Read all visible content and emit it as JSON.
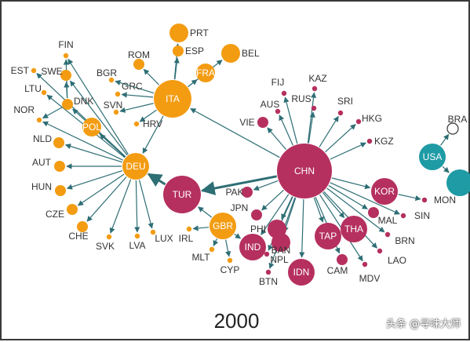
{
  "year": "2000",
  "watermark": "头条 @寻味大师",
  "colors": {
    "orange": "#F39C12",
    "crimson": "#B5305F",
    "teal": "#1E9BA5",
    "edge": "#2E6E75"
  },
  "nodes": [
    {
      "id": "CHN",
      "text": "CHN",
      "group": "crimson",
      "size": "xl",
      "inside": true
    },
    {
      "id": "ITA",
      "text": "ITA",
      "group": "orange",
      "size": "l",
      "inside": true
    },
    {
      "id": "DEU",
      "text": "DEU",
      "group": "orange",
      "size": "m",
      "inside": true
    },
    {
      "id": "TUR",
      "text": "TUR",
      "group": "crimson",
      "size": "l",
      "inside": true
    },
    {
      "id": "GBR",
      "text": "GBR",
      "group": "orange",
      "size": "m",
      "inside": true
    },
    {
      "id": "FRA",
      "text": "FRA",
      "group": "orange",
      "size": "s",
      "inside": true
    },
    {
      "id": "POL",
      "text": "POL",
      "group": "orange",
      "size": "s",
      "inside": true
    },
    {
      "id": "KOR",
      "text": "KOR",
      "group": "crimson",
      "size": "m",
      "inside": true
    },
    {
      "id": "IND",
      "text": "IND",
      "group": "crimson",
      "size": "m",
      "inside": true
    },
    {
      "id": "IDN",
      "text": "IDN",
      "group": "crimson",
      "size": "m",
      "inside": true
    },
    {
      "id": "TAP",
      "text": "TAP",
      "group": "crimson",
      "size": "m",
      "inside": true
    },
    {
      "id": "THA",
      "text": "THA",
      "group": "crimson",
      "size": "m",
      "inside": true
    },
    {
      "id": "USA",
      "text": "USA",
      "group": "teal",
      "size": "m",
      "inside": true
    },
    {
      "id": "TEAL2",
      "text": "",
      "group": "teal",
      "size": "m",
      "inside": true
    },
    {
      "id": "PRT",
      "text": "PRT",
      "group": "orange",
      "size": "s"
    },
    {
      "id": "ESP",
      "text": "ESP",
      "group": "orange",
      "size": "xs"
    },
    {
      "id": "BEL",
      "text": "BEL",
      "group": "orange",
      "size": "s"
    },
    {
      "id": "ROM",
      "text": "ROM",
      "group": "orange",
      "size": "xs"
    },
    {
      "id": "BGR",
      "text": "BGR",
      "group": "orange",
      "size": "xxs"
    },
    {
      "id": "GRC",
      "text": "GRC",
      "group": "orange",
      "size": "xxs"
    },
    {
      "id": "SVN",
      "text": "SVN",
      "group": "orange",
      "size": "xxs"
    },
    {
      "id": "HRV",
      "text": "HRV",
      "group": "orange",
      "size": "xxs"
    },
    {
      "id": "FIN",
      "text": "FIN",
      "group": "orange",
      "size": "xxs"
    },
    {
      "id": "EST",
      "text": "EST",
      "group": "orange",
      "size": "xxs"
    },
    {
      "id": "SWE",
      "text": "SWE",
      "group": "orange",
      "size": "xs"
    },
    {
      "id": "LTU",
      "text": "LTU",
      "group": "orange",
      "size": "xxs"
    },
    {
      "id": "DNK",
      "text": "DNK",
      "group": "orange",
      "size": "xs"
    },
    {
      "id": "NOR",
      "text": "NOR",
      "group": "orange",
      "size": "xxs"
    },
    {
      "id": "NLD",
      "text": "NLD",
      "group": "orange",
      "size": "xs"
    },
    {
      "id": "AUT",
      "text": "AUT",
      "group": "orange",
      "size": "xs"
    },
    {
      "id": "HUN",
      "text": "HUN",
      "group": "orange",
      "size": "xs"
    },
    {
      "id": "CZE",
      "text": "CZE",
      "group": "orange",
      "size": "xs"
    },
    {
      "id": "CHE",
      "text": "CHE",
      "group": "orange",
      "size": "xs"
    },
    {
      "id": "SVK",
      "text": "SVK",
      "group": "orange",
      "size": "xxs"
    },
    {
      "id": "LVA",
      "text": "LVA",
      "group": "orange",
      "size": "xxs"
    },
    {
      "id": "LUX",
      "text": "LUX",
      "group": "orange",
      "size": "xxs"
    },
    {
      "id": "IRL",
      "text": "IRL",
      "group": "orange",
      "size": "xxs"
    },
    {
      "id": "MLT",
      "text": "MLT",
      "group": "orange",
      "size": "xxs"
    },
    {
      "id": "CYP",
      "text": "CYP",
      "group": "orange",
      "size": "xxs"
    },
    {
      "id": "PAK",
      "text": "PAK",
      "group": "crimson",
      "size": "xs"
    },
    {
      "id": "JPN",
      "text": "JPN",
      "group": "crimson",
      "size": "xs"
    },
    {
      "id": "PHI",
      "text": "PHI",
      "group": "crimson",
      "size": "s"
    },
    {
      "id": "BAN",
      "text": "BAN",
      "group": "crimson",
      "size": "s"
    },
    {
      "id": "NPL",
      "text": "NPL",
      "group": "crimson",
      "size": "xxs"
    },
    {
      "id": "BTN",
      "text": "BTN",
      "group": "crimson",
      "size": "xxs"
    },
    {
      "id": "CAM",
      "text": "CAM",
      "group": "crimson",
      "size": "xs"
    },
    {
      "id": "MDV",
      "text": "MDV",
      "group": "crimson",
      "size": "xxs"
    },
    {
      "id": "LAO",
      "text": "LAO",
      "group": "crimson",
      "size": "xxs"
    },
    {
      "id": "BRN",
      "text": "BRN",
      "group": "crimson",
      "size": "xxs"
    },
    {
      "id": "MAL",
      "text": "MAL",
      "group": "crimson",
      "size": "xs"
    },
    {
      "id": "SIN",
      "text": "SIN",
      "group": "crimson",
      "size": "xxs"
    },
    {
      "id": "MON",
      "text": "MON",
      "group": "crimson",
      "size": "xxs"
    },
    {
      "id": "KGZ",
      "text": "KGZ",
      "group": "crimson",
      "size": "xxs"
    },
    {
      "id": "HKG",
      "text": "HKG",
      "group": "crimson",
      "size": "xxs"
    },
    {
      "id": "SRI",
      "text": "SRI",
      "group": "crimson",
      "size": "xxs"
    },
    {
      "id": "KAZ",
      "text": "KAZ",
      "group": "crimson",
      "size": "xxs"
    },
    {
      "id": "RUS",
      "text": "RUS",
      "group": "crimson",
      "size": "xxs"
    },
    {
      "id": "FIJ",
      "text": "FIJ",
      "group": "crimson",
      "size": "xxs"
    },
    {
      "id": "AUS",
      "text": "AUS",
      "group": "crimson",
      "size": "xxs"
    },
    {
      "id": "VIE",
      "text": "VIE",
      "group": "crimson",
      "size": "xs"
    },
    {
      "id": "BRA",
      "text": "BRA",
      "group": "hollow",
      "size": "xs"
    }
  ],
  "edges": [
    [
      "CHN",
      "ITA"
    ],
    [
      "CHN",
      "TUR"
    ],
    [
      "CHN",
      "PAK"
    ],
    [
      "CHN",
      "JPN"
    ],
    [
      "CHN",
      "PHI"
    ],
    [
      "CHN",
      "BAN"
    ],
    [
      "CHN",
      "IND"
    ],
    [
      "CHN",
      "IDN"
    ],
    [
      "CHN",
      "TAP"
    ],
    [
      "CHN",
      "THA"
    ],
    [
      "CHN",
      "CAM"
    ],
    [
      "CHN",
      "MDV"
    ],
    [
      "CHN",
      "KOR"
    ],
    [
      "CHN",
      "MAL"
    ],
    [
      "CHN",
      "SIN"
    ],
    [
      "CHN",
      "BRN"
    ],
    [
      "CHN",
      "LAO"
    ],
    [
      "CHN",
      "KGZ"
    ],
    [
      "CHN",
      "HKG"
    ],
    [
      "CHN",
      "SRI"
    ],
    [
      "CHN",
      "KAZ"
    ],
    [
      "CHN",
      "RUS"
    ],
    [
      "CHN",
      "FIJ"
    ],
    [
      "CHN",
      "AUS"
    ],
    [
      "CHN",
      "VIE"
    ],
    [
      "CHN",
      "NPL"
    ],
    [
      "CHN",
      "BTN"
    ],
    [
      "KOR",
      "MON"
    ],
    [
      "ITA",
      "FRA"
    ],
    [
      "ITA",
      "ESP"
    ],
    [
      "ITA",
      "PRT"
    ],
    [
      "ITA",
      "BEL"
    ],
    [
      "ITA",
      "ROM"
    ],
    [
      "ITA",
      "BGR"
    ],
    [
      "ITA",
      "GRC"
    ],
    [
      "ITA",
      "SVN"
    ],
    [
      "ITA",
      "HRV"
    ],
    [
      "ITA",
      "DEU"
    ],
    [
      "DEU",
      "POL"
    ],
    [
      "DEU",
      "DNK"
    ],
    [
      "DEU",
      "SWE"
    ],
    [
      "DEU",
      "FIN"
    ],
    [
      "DEU",
      "EST"
    ],
    [
      "DEU",
      "LTU"
    ],
    [
      "DEU",
      "NOR"
    ],
    [
      "DEU",
      "NLD"
    ],
    [
      "DEU",
      "AUT"
    ],
    [
      "DEU",
      "HUN"
    ],
    [
      "DEU",
      "CZE"
    ],
    [
      "DEU",
      "CHE"
    ],
    [
      "DEU",
      "SVK"
    ],
    [
      "DEU",
      "LVA"
    ],
    [
      "DEU",
      "LUX"
    ],
    [
      "DNK",
      "FIN"
    ],
    [
      "DNK",
      "SWE"
    ],
    [
      "DNK",
      "NOR"
    ],
    [
      "TUR",
      "DEU"
    ],
    [
      "GBR",
      "IRL"
    ],
    [
      "GBR",
      "MLT"
    ],
    [
      "GBR",
      "CYP"
    ],
    [
      "GBR",
      "IND"
    ],
    [
      "GBR",
      "TUR"
    ],
    [
      "USA",
      "BRA"
    ],
    [
      "USA",
      "TEAL2"
    ]
  ]
}
